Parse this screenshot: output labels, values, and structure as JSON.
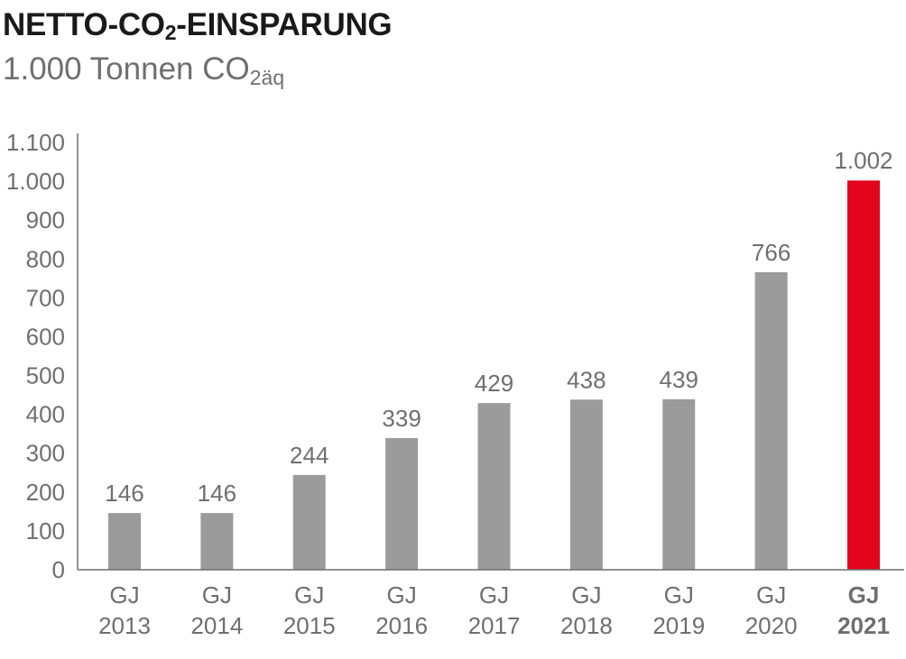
{
  "header": {
    "title_main": "NETTO-CO",
    "title_sub": "2",
    "title_rest": "-EINSPARUNG",
    "unit_main": "1.000 Tonnen CO",
    "unit_sub": "2äq"
  },
  "colors": {
    "bar": "#9b9b9b",
    "highlight": "#e3051b",
    "axis": "#6f6f6f",
    "text": "#6f6f6f",
    "title": "#1a1a1a"
  },
  "chart_data": {
    "type": "bar",
    "title": "NETTO-CO2-EINSPARUNG",
    "subtitle": "1.000 Tonnen CO2äq",
    "categories": [
      [
        "GJ",
        "2013"
      ],
      [
        "GJ",
        "2014"
      ],
      [
        "GJ",
        "2015"
      ],
      [
        "GJ",
        "2016"
      ],
      [
        "GJ",
        "2017"
      ],
      [
        "GJ",
        "2018"
      ],
      [
        "GJ",
        "2019"
      ],
      [
        "GJ",
        "2020"
      ],
      [
        "GJ",
        "2021"
      ]
    ],
    "values": [
      146,
      146,
      244,
      339,
      429,
      438,
      439,
      766,
      1002
    ],
    "value_labels": [
      "146",
      "146",
      "244",
      "339",
      "429",
      "438",
      "439",
      "766",
      "1.002"
    ],
    "highlight_index": 8,
    "ylim": [
      0,
      1100
    ],
    "yticks": [
      0,
      100,
      200,
      300,
      400,
      500,
      600,
      700,
      800,
      900,
      1000,
      1100
    ],
    "ytick_labels": [
      "0",
      "100",
      "200",
      "300",
      "400",
      "500",
      "600",
      "700",
      "800",
      "900",
      "1.000",
      "1.100"
    ],
    "grid": false,
    "legend": "none"
  }
}
